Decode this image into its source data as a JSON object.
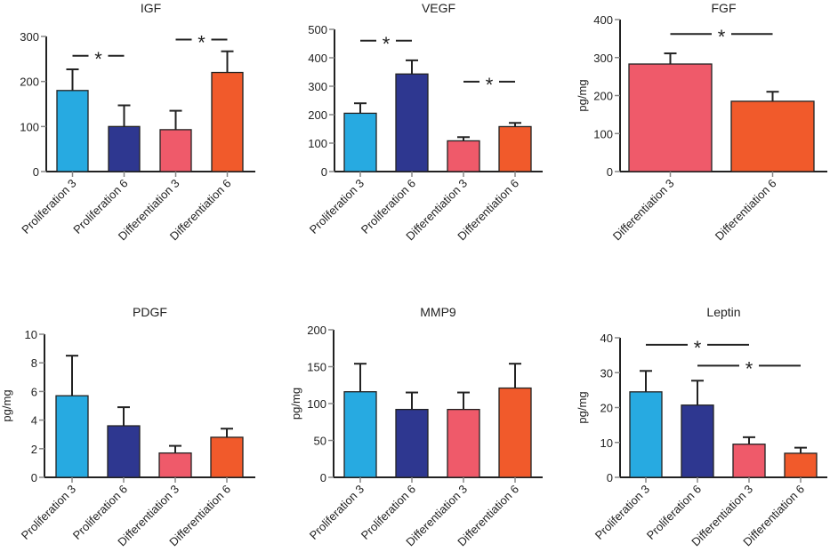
{
  "chart_data": [
    {
      "type": "bar",
      "title": "IGF",
      "ylabel": "",
      "ylim": [
        0,
        300
      ],
      "yticks": [
        0,
        100,
        200,
        300
      ],
      "categories": [
        "Proliferation 3",
        "Proliferation 6",
        "Differentiation 3",
        "Differentiation 6"
      ],
      "values": [
        180,
        100,
        93,
        220
      ],
      "errors": [
        47,
        47,
        42,
        47
      ],
      "colors": [
        "#27aae1",
        "#2e3790",
        "#ef5a6a",
        "#f15a2b"
      ],
      "significance": [
        {
          "from": 0,
          "to": 1,
          "label": "*",
          "y": 257
        },
        {
          "from": 2,
          "to": 3,
          "label": "*",
          "y": 293
        }
      ]
    },
    {
      "type": "bar",
      "title": "VEGF",
      "ylabel": "",
      "ylim": [
        0,
        500
      ],
      "yticks": [
        0,
        100,
        200,
        300,
        400,
        500
      ],
      "categories": [
        "Proliferation 3",
        "Proliferation 6",
        "Differentiation 3",
        "Differentiation 6"
      ],
      "values": [
        205,
        343,
        108,
        158
      ],
      "errors": [
        35,
        48,
        13,
        13
      ],
      "colors": [
        "#27aae1",
        "#2e3790",
        "#ef5a6a",
        "#f15a2b"
      ],
      "significance": [
        {
          "from": 0,
          "to": 1,
          "label": "*",
          "y": 460
        },
        {
          "from": 2,
          "to": 3,
          "label": "*",
          "y": 316
        }
      ]
    },
    {
      "type": "bar",
      "title": "FGF",
      "ylabel": "pg/mg",
      "ylim": [
        0,
        400
      ],
      "yticks": [
        0,
        100,
        200,
        300,
        400
      ],
      "categories": [
        "Differentiation 3",
        "Differentiation 6"
      ],
      "values": [
        283,
        185
      ],
      "errors": [
        28,
        25
      ],
      "colors": [
        "#ef5a6a",
        "#f15a2b"
      ],
      "significance": [
        {
          "from": 0,
          "to": 1,
          "label": "*",
          "y": 362
        }
      ]
    },
    {
      "type": "bar",
      "title": "PDGF",
      "ylabel": "pg/mg",
      "ylim": [
        0,
        10
      ],
      "yticks": [
        0,
        2,
        4,
        6,
        8,
        10
      ],
      "categories": [
        "Proliferation 3",
        "Proliferation 6",
        "Differentiation 3",
        "Differentiation 6"
      ],
      "values": [
        5.7,
        3.6,
        1.7,
        2.8
      ],
      "errors": [
        2.8,
        1.3,
        0.5,
        0.6
      ],
      "colors": [
        "#27aae1",
        "#2e3790",
        "#ef5a6a",
        "#f15a2b"
      ],
      "significance": []
    },
    {
      "type": "bar",
      "title": "MMP9",
      "ylabel": "pg/mg",
      "ylim": [
        0,
        200
      ],
      "yticks": [
        0,
        50,
        100,
        150,
        200
      ],
      "categories": [
        "Proliferation 3",
        "Proliferation 6",
        "Differentiation 3",
        "Differentiation 6"
      ],
      "values": [
        116,
        92,
        92,
        121
      ],
      "errors": [
        38,
        23,
        23,
        33
      ],
      "colors": [
        "#27aae1",
        "#2e3790",
        "#ef5a6a",
        "#f15a2b"
      ],
      "significance": []
    },
    {
      "type": "bar",
      "title": "Leptin",
      "ylabel": "pg/mg",
      "ylim": [
        0,
        40
      ],
      "yticks": [
        0,
        10,
        20,
        30,
        40
      ],
      "categories": [
        "Proliferation 3",
        "Proliferation 6",
        "Differentiation 3",
        "Differentiation 6"
      ],
      "values": [
        24.5,
        20.7,
        9.5,
        6.9
      ],
      "errors": [
        6,
        7,
        2,
        1.6
      ],
      "colors": [
        "#27aae1",
        "#2e3790",
        "#ef5a6a",
        "#f15a2b"
      ],
      "significance": [
        {
          "from": 0,
          "to": 2,
          "label": "*",
          "y": 38
        },
        {
          "from": 1,
          "to": 3,
          "label": "*",
          "y": 32
        }
      ]
    }
  ]
}
